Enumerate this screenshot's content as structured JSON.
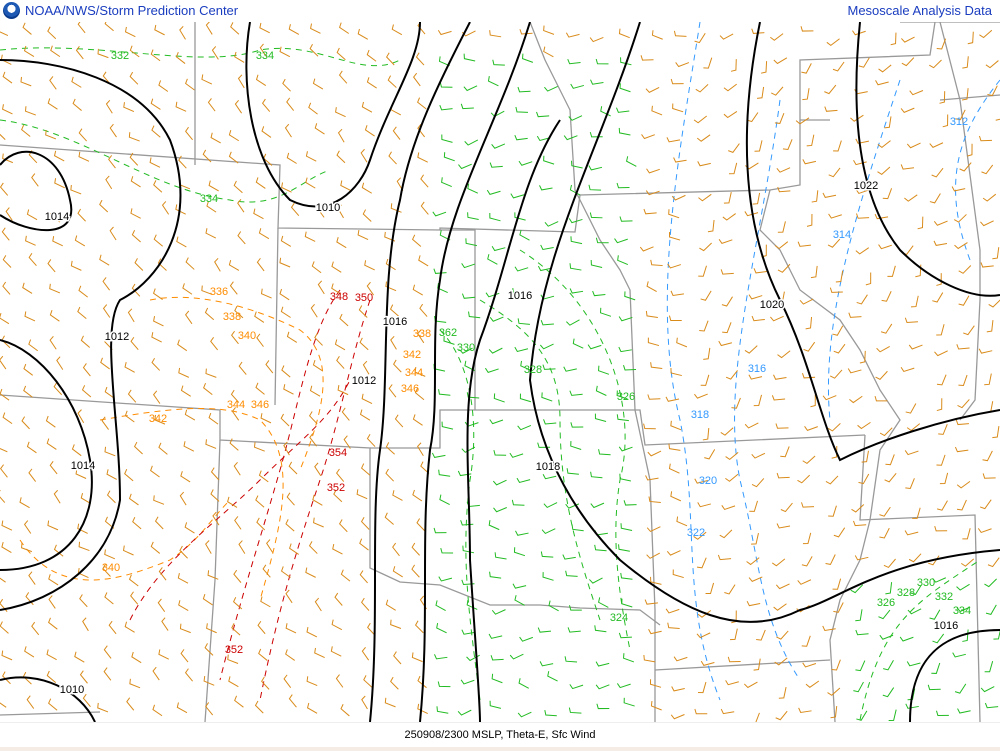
{
  "header": {
    "title": "NOAA/NWS/Storm Prediction Center",
    "right_title": "Mesoscale Analysis Data",
    "logo": "noaa-logo"
  },
  "footer": {
    "caption": "250908/2300 MSLP, Theta-E, Sfc Wind"
  },
  "colors": {
    "isobar": "#000000",
    "border": "#999999",
    "warm": "#ff8c00",
    "hot": "#cc0000",
    "mid": "#22bb22",
    "cool": "#3399ff",
    "barb_orange": "#d98b1a",
    "barb_green": "#22bb22"
  },
  "isobar_labels": [
    "1014",
    "1012",
    "1014",
    "1010",
    "1010",
    "1012",
    "1016",
    "1016",
    "1018",
    "1020",
    "1022",
    "1016"
  ],
  "thetae_labels": [
    {
      "t": "332",
      "c": "mid"
    },
    {
      "t": "334",
      "c": "mid"
    },
    {
      "t": "334",
      "c": "mid"
    },
    {
      "t": "336",
      "c": "warm"
    },
    {
      "t": "338",
      "c": "warm"
    },
    {
      "t": "340",
      "c": "warm"
    },
    {
      "t": "342",
      "c": "warm"
    },
    {
      "t": "344",
      "c": "warm"
    },
    {
      "t": "346",
      "c": "warm"
    },
    {
      "t": "340",
      "c": "warm"
    },
    {
      "t": "348",
      "c": "hot"
    },
    {
      "t": "350",
      "c": "hot"
    },
    {
      "t": "354",
      "c": "hot"
    },
    {
      "t": "352",
      "c": "hot"
    },
    {
      "t": "352",
      "c": "hot"
    },
    {
      "t": "338",
      "c": "warm"
    },
    {
      "t": "342",
      "c": "warm"
    },
    {
      "t": "344",
      "c": "warm"
    },
    {
      "t": "346",
      "c": "warm"
    },
    {
      "t": "362",
      "c": "mid"
    },
    {
      "t": "330",
      "c": "mid"
    },
    {
      "t": "328",
      "c": "mid"
    },
    {
      "t": "326",
      "c": "mid"
    },
    {
      "t": "324",
      "c": "mid"
    },
    {
      "t": "312",
      "c": "cool"
    },
    {
      "t": "314",
      "c": "cool"
    },
    {
      "t": "316",
      "c": "cool"
    },
    {
      "t": "318",
      "c": "cool"
    },
    {
      "t": "320",
      "c": "cool"
    },
    {
      "t": "322",
      "c": "cool"
    },
    {
      "t": "326",
      "c": "mid"
    },
    {
      "t": "328",
      "c": "mid"
    },
    {
      "t": "330",
      "c": "mid"
    },
    {
      "t": "332",
      "c": "mid"
    },
    {
      "t": "334",
      "c": "mid"
    }
  ]
}
